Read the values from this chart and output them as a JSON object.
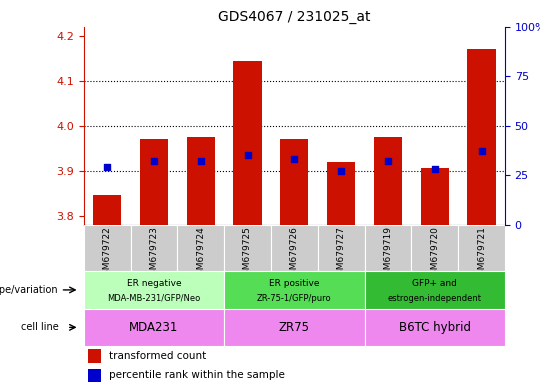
{
  "title": "GDS4067 / 231025_at",
  "samples": [
    "GSM679722",
    "GSM679723",
    "GSM679724",
    "GSM679725",
    "GSM679726",
    "GSM679727",
    "GSM679719",
    "GSM679720",
    "GSM679721"
  ],
  "bar_values": [
    3.845,
    3.97,
    3.975,
    4.145,
    3.97,
    3.92,
    3.975,
    3.905,
    4.17
  ],
  "percentile_values": [
    29,
    32,
    32,
    35,
    33,
    27,
    32,
    28,
    37
  ],
  "ylim": [
    3.78,
    4.22
  ],
  "yticks": [
    3.8,
    3.9,
    4.0,
    4.1,
    4.2
  ],
  "y2lim": [
    0,
    100
  ],
  "y2ticks": [
    0,
    25,
    50,
    75,
    100
  ],
  "bar_color": "#cc1100",
  "dot_color": "#0000cc",
  "bar_width": 0.6,
  "dotted_lines": [
    3.9,
    4.0,
    4.1
  ],
  "groups": [
    {
      "label_top": "ER negative",
      "label_bot": "MDA-MB-231/GFP/Neo",
      "start": 0,
      "end": 3,
      "color": "#bbffbb"
    },
    {
      "label_top": "ER positive",
      "label_bot": "ZR-75-1/GFP/puro",
      "start": 3,
      "end": 6,
      "color": "#55dd55"
    },
    {
      "label_top": "GFP+ and",
      "label_bot": "estrogen-independent",
      "start": 6,
      "end": 9,
      "color": "#33bb33"
    }
  ],
  "cell_lines": [
    {
      "label": "MDA231",
      "start": 0,
      "end": 3,
      "color": "#ee88ee"
    },
    {
      "label": "ZR75",
      "start": 3,
      "end": 6,
      "color": "#ee88ee"
    },
    {
      "label": "B6TC hybrid",
      "start": 6,
      "end": 9,
      "color": "#ee88ee"
    }
  ],
  "legend_bar_label": "transformed count",
  "legend_dot_label": "percentile rank within the sample",
  "left_label_geno": "genotype/variation",
  "left_label_cell": "cell line",
  "left_axis_color": "#cc1100",
  "right_axis_color": "#0000cc",
  "sample_bg_color": "#cccccc"
}
